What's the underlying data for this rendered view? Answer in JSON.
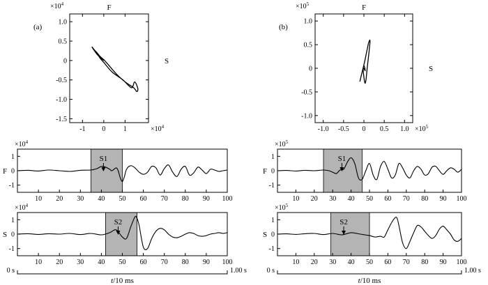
{
  "chart_data": [
    {
      "id": "a",
      "type": "line",
      "panel_label": "(a)",
      "top_label": "F",
      "right_label": "S",
      "x_exp": "×10",
      "x_exp_power": "4",
      "y_exp": "×10",
      "y_exp_power": "4",
      "xlim": [
        -1.6,
        2.1
      ],
      "ylim": [
        -1.6,
        1.2
      ],
      "xticks": [
        -1,
        0,
        1
      ],
      "yticks": [
        -1.5,
        -1.0,
        -0.5,
        0,
        0.5,
        1.0
      ],
      "xtick_labels": [
        "-1",
        "0",
        "1"
      ],
      "ytick_labels": [
        "-1.5",
        "-1.0",
        "-0.5",
        "0",
        "0.5",
        "1.0"
      ],
      "series": [
        {
          "x": [
            0,
            -0.1,
            -0.3,
            -0.5,
            -0.55,
            -0.45,
            -0.2,
            0,
            0.2,
            0.6,
            1.0,
            1.4,
            1.55,
            1.6,
            1.45,
            1.3,
            0.9,
            0.4,
            0,
            -0.2,
            -0.35,
            -0.2,
            0
          ],
          "y": [
            0,
            0.05,
            0.15,
            0.3,
            0.35,
            0.28,
            0.12,
            0.02,
            -0.1,
            -0.35,
            -0.55,
            -0.7,
            -0.8,
            -0.72,
            -0.55,
            -0.7,
            -0.5,
            -0.3,
            -0.05,
            0.08,
            0.22,
            0.12,
            0
          ]
        }
      ]
    },
    {
      "id": "b",
      "type": "line",
      "panel_label": "(b)",
      "top_label": "F",
      "right_label": "S",
      "x_exp": "×10",
      "x_exp_power": "5",
      "y_exp": "×10",
      "y_exp_power": "5",
      "xlim": [
        -1.2,
        1.2
      ],
      "ylim": [
        -1.15,
        1.15
      ],
      "xticks": [
        -1.0,
        -0.5,
        0,
        0.5,
        1.0
      ],
      "yticks": [
        -1.0,
        -0.5,
        0,
        0.5,
        1.0
      ],
      "xtick_labels": [
        "-1.0",
        "-0.5",
        "0",
        "0.5",
        "1.0"
      ],
      "ytick_labels": [
        "-1.0",
        "-0.5",
        "0",
        "0.5",
        "1.0"
      ],
      "series": [
        {
          "x": [
            -0.1,
            -0.05,
            0.02,
            0.08,
            0.12,
            0.15,
            0.12,
            0.08,
            0.05,
            0.02,
            -0.02,
            0.03,
            0.0,
            -0.05,
            -0.1
          ],
          "y": [
            -0.28,
            -0.1,
            0.15,
            0.4,
            0.55,
            0.58,
            0.3,
            0.0,
            -0.25,
            -0.3,
            0.0,
            -0.05,
            0.05,
            -0.1,
            -0.28
          ]
        }
      ]
    },
    {
      "id": "a-F",
      "type": "line",
      "ylabel": "F",
      "y_exp": "×10",
      "y_exp_power": "4",
      "xlim": [
        0,
        100
      ],
      "ylim": [
        -1.5,
        1.5
      ],
      "yticks": [
        -1,
        0,
        1
      ],
      "ytick_labels": [
        "-1",
        "0",
        "1"
      ],
      "xticks": [
        10,
        20,
        30,
        40,
        50,
        60,
        70,
        80,
        90,
        100
      ],
      "xtick_labels": [
        "10",
        "20",
        "30",
        "40",
        "50",
        "60",
        "70",
        "80",
        "90",
        "100"
      ],
      "shade": [
        35,
        50
      ],
      "annotation": {
        "label": "S1",
        "x": 41
      },
      "series": [
        {
          "x": [
            0,
            5,
            10,
            15,
            20,
            25,
            30,
            35,
            38,
            40,
            42,
            44,
            45,
            47,
            48,
            49,
            50,
            51,
            52,
            54,
            56,
            58,
            60,
            62,
            64,
            66,
            68,
            70,
            72,
            74,
            76,
            78,
            80,
            82,
            84,
            86,
            88,
            90,
            92,
            94,
            96,
            98,
            100
          ],
          "y": [
            0,
            0.03,
            -0.02,
            0.05,
            0,
            -0.05,
            0.03,
            0.05,
            0.15,
            0.3,
            0.25,
            0.1,
            0.0,
            0.2,
            0.0,
            -0.5,
            -0.75,
            -0.4,
            0.1,
            0.35,
            0.2,
            -0.1,
            -0.25,
            -0.1,
            0.3,
            0.2,
            -0.3,
            0.15,
            0.4,
            -0.1,
            -0.4,
            0.1,
            0.3,
            -0.3,
            -0.15,
            0.25,
            0.05,
            -0.2,
            0.1,
            0.05,
            -0.05,
            0.0,
            0.05
          ]
        }
      ]
    },
    {
      "id": "a-S",
      "type": "line",
      "ylabel": "S",
      "y_exp": "×10",
      "y_exp_power": "4",
      "xlim": [
        0,
        100
      ],
      "ylim": [
        -1.5,
        1.5
      ],
      "yticks": [
        -1,
        0,
        1
      ],
      "ytick_labels": [
        "-1",
        "0",
        "1"
      ],
      "xticks": [
        10,
        20,
        30,
        40,
        50,
        60,
        70,
        80,
        90,
        100
      ],
      "xtick_labels": [
        "10",
        "20",
        "30",
        "40",
        "50",
        "60",
        "70",
        "80",
        "90",
        "100"
      ],
      "shade": [
        42,
        57
      ],
      "annotation": {
        "label": "S2",
        "x": 48
      },
      "series": [
        {
          "x": [
            0,
            5,
            10,
            15,
            20,
            25,
            30,
            35,
            40,
            44,
            47,
            50,
            52,
            54,
            56,
            57,
            58,
            60,
            62,
            64,
            66,
            68,
            70,
            72,
            74,
            76,
            78,
            80,
            82,
            84,
            86,
            88,
            90,
            92,
            94,
            96,
            98,
            100
          ],
          "y": [
            0,
            0.03,
            -0.02,
            0.03,
            0,
            0.05,
            -0.03,
            0.05,
            -0.05,
            0.1,
            0.3,
            -0.2,
            -0.3,
            0.5,
            1.2,
            1.1,
            0.6,
            -0.9,
            -1.0,
            -0.3,
            0.2,
            0.4,
            0.3,
            0.0,
            -0.2,
            -0.25,
            -0.15,
            0.0,
            0.1,
            0.05,
            -0.1,
            -0.15,
            -0.1,
            0.0,
            0.05,
            0.1,
            0.05,
            0.1
          ]
        }
      ]
    },
    {
      "id": "b-F",
      "type": "line",
      "ylabel": "F",
      "y_exp": "×10",
      "y_exp_power": "5",
      "xlim": [
        0,
        100
      ],
      "ylim": [
        -1.5,
        1.5
      ],
      "yticks": [
        -1,
        0,
        1
      ],
      "ytick_labels": [
        "-1",
        "0",
        "1"
      ],
      "xticks": [
        10,
        20,
        30,
        40,
        50,
        60,
        70,
        80,
        90,
        100
      ],
      "xtick_labels": [
        "10",
        "20",
        "30",
        "40",
        "50",
        "60",
        "70",
        "80",
        "90",
        "100"
      ],
      "shade": [
        25,
        46
      ],
      "annotation": {
        "label": "S1",
        "x": 35
      },
      "series": [
        {
          "x": [
            0,
            5,
            10,
            15,
            20,
            25,
            28,
            30,
            32,
            34,
            36,
            38,
            40,
            42,
            44,
            46,
            48,
            50,
            52,
            54,
            56,
            58,
            60,
            62,
            64,
            66,
            68,
            70,
            72,
            74,
            76,
            78,
            80,
            82,
            84,
            86,
            88,
            90,
            92,
            94,
            96,
            98,
            100
          ],
          "y": [
            0,
            0.02,
            -0.02,
            0.03,
            0,
            0.05,
            0.0,
            -0.1,
            -0.2,
            0.05,
            0.1,
            0.6,
            0.9,
            0.5,
            -0.5,
            -0.6,
            0.0,
            0.5,
            -0.3,
            -0.6,
            0.3,
            0.65,
            0.1,
            -0.5,
            -0.3,
            0.5,
            0.2,
            -0.3,
            -0.5,
            0.0,
            0.3,
            0.1,
            -0.3,
            -0.2,
            0.25,
            0.3,
            0.0,
            -0.25,
            0.0,
            0.2,
            0.1,
            -0.1,
            0.1
          ]
        }
      ]
    },
    {
      "id": "b-S",
      "type": "line",
      "ylabel": "S",
      "y_exp": "×10",
      "y_exp_power": "5",
      "xlim": [
        0,
        100
      ],
      "ylim": [
        -1.5,
        1.5
      ],
      "yticks": [
        -1,
        0,
        1
      ],
      "ytick_labels": [
        "-1",
        "0",
        "1"
      ],
      "xticks": [
        10,
        20,
        30,
        40,
        50,
        60,
        70,
        80,
        90,
        100
      ],
      "xtick_labels": [
        "10",
        "20",
        "30",
        "40",
        "50",
        "60",
        "70",
        "80",
        "90",
        "100"
      ],
      "shade": [
        29,
        50
      ],
      "annotation": {
        "label": "S2",
        "x": 36
      },
      "series": [
        {
          "x": [
            0,
            5,
            10,
            15,
            20,
            25,
            30,
            35,
            40,
            45,
            50,
            53,
            56,
            58,
            60,
            62,
            64,
            65,
            66,
            68,
            70,
            72,
            74,
            76,
            78,
            80,
            82,
            84,
            86,
            88,
            90,
            92,
            94,
            96,
            98,
            100
          ],
          "y": [
            0,
            0.02,
            -0.02,
            0.03,
            0.05,
            -0.03,
            0.05,
            -0.05,
            0.1,
            0.0,
            -0.1,
            -0.2,
            -0.15,
            -0.2,
            0.3,
            0.8,
            1.15,
            1.1,
            0.6,
            -0.6,
            -1.0,
            -0.5,
            0.1,
            0.6,
            0.5,
            0.2,
            -0.1,
            -0.3,
            -0.1,
            0.35,
            0.55,
            0.3,
            0.0,
            -0.4,
            -0.5,
            -0.3
          ]
        }
      ]
    }
  ],
  "time_axes": [
    {
      "start_label": "0 s",
      "end_label": "1.00 s",
      "xlabel_italic": "t",
      "xlabel_rest": "/10 ms"
    },
    {
      "start_label": "0 s",
      "end_label": "1.00 s",
      "xlabel_italic": "t",
      "xlabel_rest": "/10 ms"
    }
  ]
}
